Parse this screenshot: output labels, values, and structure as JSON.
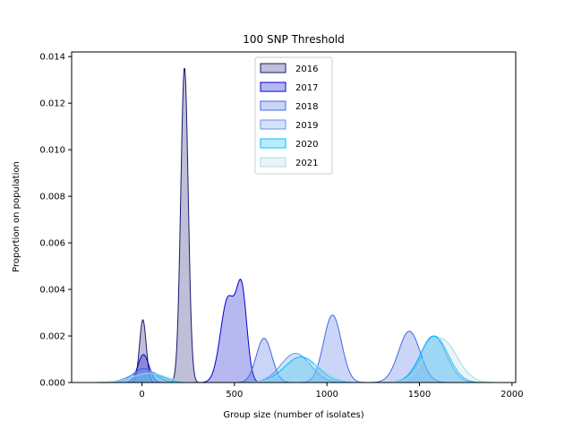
{
  "colors": {
    "2016": "#191970",
    "2017": "#0000cd",
    "2018": "#4169e1",
    "2019": "#6495ed",
    "2020": "#00bfff",
    "2021": "#add8e6"
  },
  "chart_data": {
    "type": "area",
    "title": "100 SNP Threshold",
    "xlabel": "Group size (number of isolates)",
    "ylabel": "Proportion on population",
    "xlim": [
      -380,
      2020
    ],
    "ylim": [
      0,
      0.0142
    ],
    "xticks": [
      0,
      500,
      1000,
      1500,
      2000
    ],
    "xtick_labels": [
      "0",
      "500",
      "1000",
      "1500",
      "2000"
    ],
    "yticks": [
      0,
      0.002,
      0.004,
      0.006,
      0.008,
      0.01,
      0.012,
      0.014
    ],
    "ytick_labels": [
      "0.000",
      "0.002",
      "0.004",
      "0.006",
      "0.008",
      "0.010",
      "0.012",
      "0.014"
    ],
    "legend_position": "top-center",
    "grid": false,
    "series": [
      {
        "name": "2016",
        "components": [
          {
            "mu": 5,
            "sd": 18,
            "amp": 0.0027
          },
          {
            "mu": 230,
            "sd": 20,
            "amp": 0.01355
          }
        ]
      },
      {
        "name": "2017",
        "components": [
          {
            "mu": 8,
            "sd": 30,
            "amp": 0.0012
          },
          {
            "mu": 465,
            "sd": 40,
            "amp": 0.0036
          },
          {
            "mu": 540,
            "sd": 28,
            "amp": 0.0037
          }
        ]
      },
      {
        "name": "2018",
        "components": [
          {
            "mu": 10,
            "sd": 60,
            "amp": 0.0006
          },
          {
            "mu": 660,
            "sd": 42,
            "amp": 0.0019
          },
          {
            "mu": 1030,
            "sd": 48,
            "amp": 0.0029
          },
          {
            "mu": 1445,
            "sd": 58,
            "amp": 0.0022
          }
        ]
      },
      {
        "name": "2019",
        "components": [
          {
            "mu": 20,
            "sd": 80,
            "amp": 0.0005
          },
          {
            "mu": 830,
            "sd": 80,
            "amp": 0.00125
          },
          {
            "mu": 1575,
            "sd": 70,
            "amp": 0.002
          }
        ]
      },
      {
        "name": "2020",
        "components": [
          {
            "mu": 30,
            "sd": 80,
            "amp": 0.0004
          },
          {
            "mu": 860,
            "sd": 90,
            "amp": 0.0011
          },
          {
            "mu": 1580,
            "sd": 75,
            "amp": 0.002
          }
        ]
      },
      {
        "name": "2021",
        "components": [
          {
            "mu": 40,
            "sd": 90,
            "amp": 0.0004
          },
          {
            "mu": 880,
            "sd": 100,
            "amp": 0.0009
          },
          {
            "mu": 1615,
            "sd": 85,
            "amp": 0.0019
          }
        ]
      }
    ]
  }
}
